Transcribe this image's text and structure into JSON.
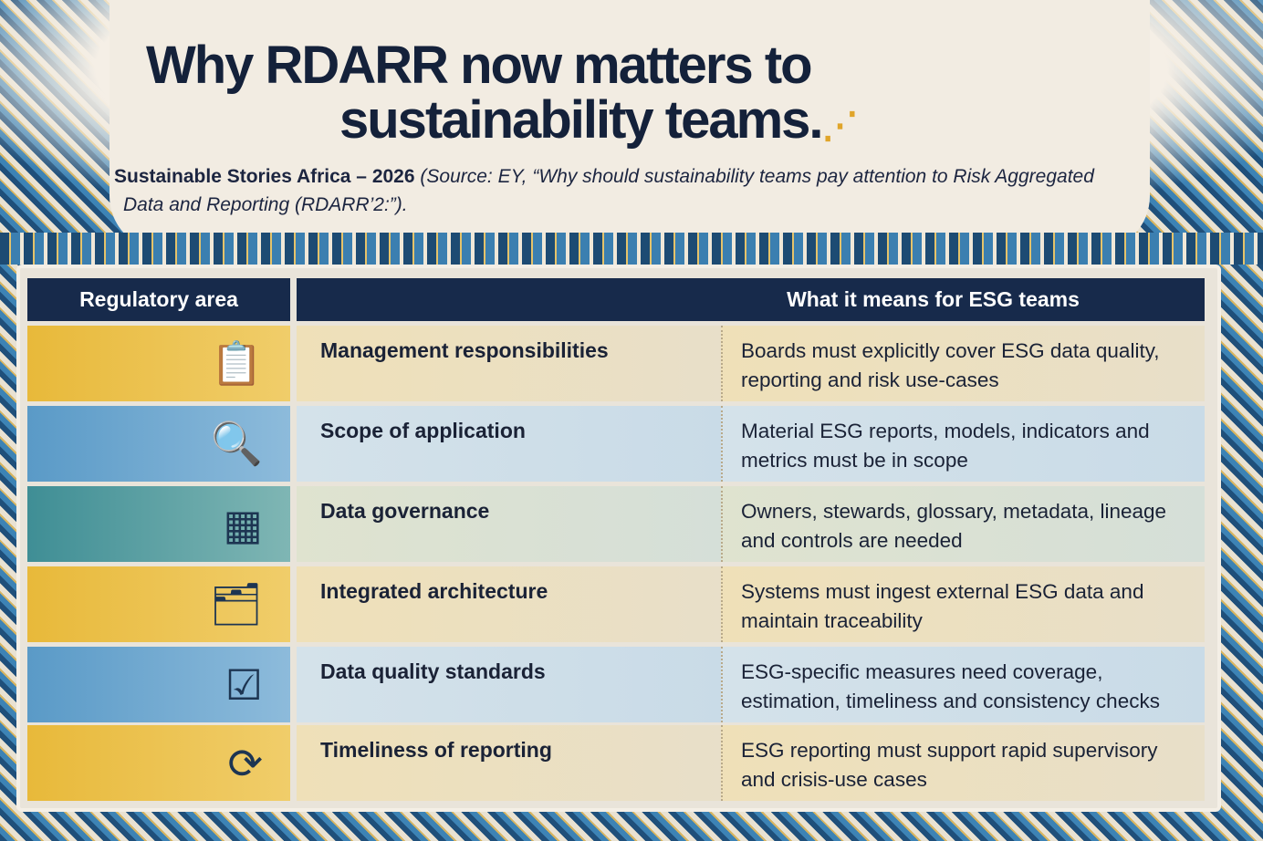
{
  "title": {
    "line1": "Why RDARR now matters to",
    "line2": "sustainability teams."
  },
  "subtitle": {
    "org": "Sustainable Stories Africa – 2026",
    "source_line1": "(Source: EY, “Why should sustainability teams pay attention to Risk Aggregated",
    "source_line2": "Data and Reporting (RDARR’2:”)."
  },
  "table": {
    "headers": [
      "Regulatory area",
      "What it means for ESG teams"
    ],
    "rows": [
      {
        "icon": "clipboard-shield-check-icon",
        "area": "Management responsibilities",
        "meaning": "Boards must explicitly cover ESG data quality, reporting and risk use-cases"
      },
      {
        "icon": "esg-magnifier-icon",
        "area": "Scope of application",
        "meaning": "Material ESG reports, models, indicators and metrics must be in scope"
      },
      {
        "icon": "data-blocks-icon",
        "area": "Data governance",
        "meaning": "Owners, stewards, glossary, metadata, lineage and controls are needed"
      },
      {
        "icon": "architecture-documents-icon",
        "area": "Integrated architecture",
        "meaning": "Systems must ingest external ESG data and maintain traceability"
      },
      {
        "icon": "checklist-magnifier-check-icon",
        "area": "Data quality standards",
        "meaning": "ESG-specific measures need coverage, estimation, timeliness and consistency checks"
      },
      {
        "icon": "clock-arrow-icon",
        "area": "Timeliness of reporting",
        "meaning": "ESG reporting must support rapid supervisory and crisis-use cases"
      }
    ]
  },
  "colors": {
    "header_bg": "#172a4b",
    "title": "#14213a",
    "gold": "#e8b93a",
    "blue": "#5a9ac7",
    "teal": "#3f8e95"
  }
}
